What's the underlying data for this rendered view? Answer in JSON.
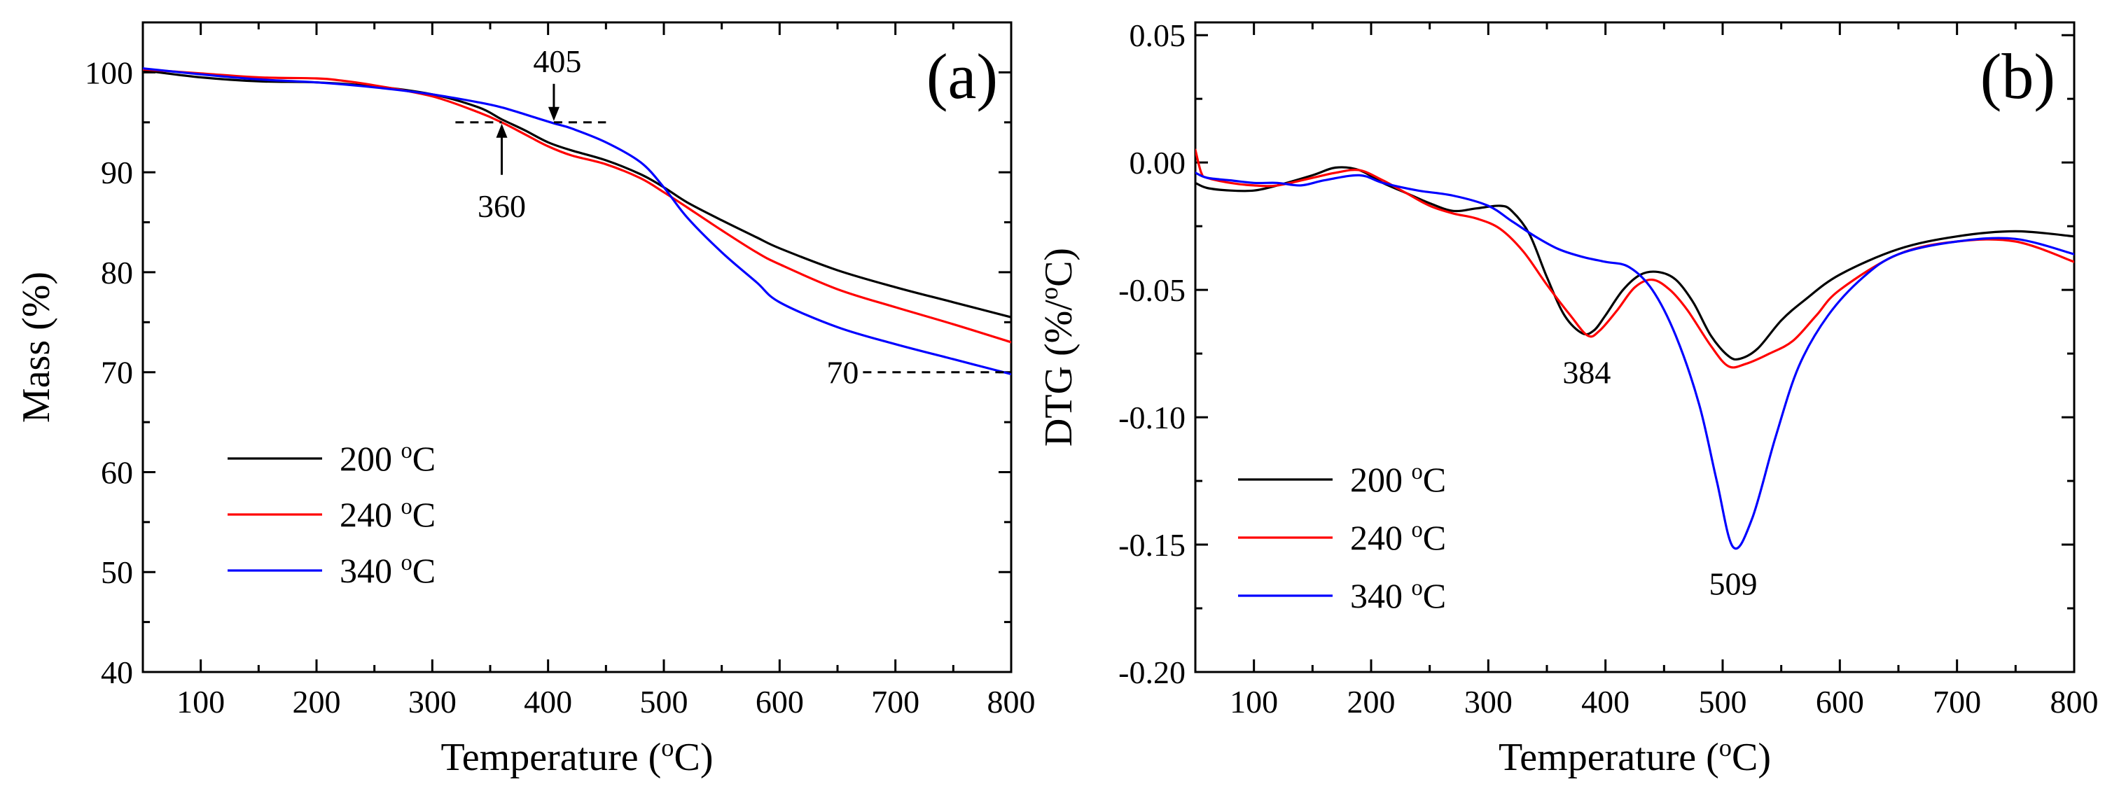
{
  "chart_data": [
    {
      "id": "a",
      "type": "line",
      "panel_label": "(a)",
      "xlabel": "Temperature (oC)",
      "ylabel": "Mass (%)",
      "xlim": [
        50,
        800
      ],
      "ylim": [
        40,
        105
      ],
      "x_ticks": [
        100,
        200,
        300,
        400,
        500,
        600,
        700,
        800
      ],
      "y_ticks": [
        40,
        50,
        60,
        70,
        80,
        90,
        100
      ],
      "legend_position": "bottom-left",
      "series": [
        {
          "name": "200 oC",
          "color": "#000000",
          "x": [
            50,
            100,
            150,
            200,
            250,
            300,
            340,
            360,
            380,
            400,
            420,
            450,
            480,
            500,
            520,
            550,
            580,
            600,
            650,
            700,
            750,
            800
          ],
          "y": [
            100.2,
            99.5,
            99.1,
            99.0,
            98.6,
            97.8,
            96.5,
            95.3,
            94.2,
            93.0,
            92.2,
            91.2,
            89.8,
            88.5,
            87.0,
            85.2,
            83.5,
            82.4,
            80.2,
            78.5,
            77.0,
            75.5
          ]
        },
        {
          "name": "240 oC",
          "color": "#ff0000",
          "x": [
            50,
            100,
            150,
            200,
            220,
            250,
            300,
            340,
            360,
            380,
            400,
            420,
            450,
            480,
            500,
            520,
            550,
            580,
            600,
            650,
            700,
            750,
            800
          ],
          "y": [
            100.3,
            99.9,
            99.5,
            99.4,
            99.2,
            98.7,
            97.6,
            96.0,
            95.0,
            93.8,
            92.6,
            91.7,
            90.8,
            89.4,
            88.0,
            86.5,
            84.2,
            82.0,
            80.8,
            78.3,
            76.5,
            74.8,
            73.0
          ]
        },
        {
          "name": "340 oC",
          "color": "#0000ff",
          "x": [
            50,
            100,
            150,
            200,
            250,
            300,
            340,
            360,
            380,
            405,
            420,
            450,
            480,
            500,
            520,
            550,
            580,
            600,
            650,
            700,
            750,
            800
          ],
          "y": [
            100.4,
            99.8,
            99.3,
            99.0,
            98.5,
            97.8,
            97.0,
            96.5,
            95.8,
            94.9,
            94.4,
            93.0,
            91.0,
            88.5,
            85.5,
            82.0,
            79.0,
            77.0,
            74.5,
            72.8,
            71.3,
            69.8
          ]
        }
      ],
      "annotations": [
        {
          "label": "405",
          "x": 405,
          "y": 95
        },
        {
          "label": "360",
          "x": 360,
          "y": 95
        },
        {
          "label": "70",
          "x": 800,
          "y": 70
        }
      ]
    },
    {
      "id": "b",
      "type": "line",
      "panel_label": "(b)",
      "xlabel": "Temperature (oC)",
      "ylabel": "DTG (%/oC)",
      "xlim": [
        50,
        800
      ],
      "ylim": [
        -0.2,
        0.055
      ],
      "x_ticks": [
        100,
        200,
        300,
        400,
        500,
        600,
        700,
        800
      ],
      "y_ticks": [
        -0.2,
        -0.15,
        -0.1,
        -0.05,
        0.0,
        0.05
      ],
      "y_tick_labels": [
        "-0.20",
        "-0.15",
        "-0.10",
        "-0.05",
        "0.00",
        "0.05"
      ],
      "legend_position": "bottom-left",
      "series": [
        {
          "name": "200 oC",
          "color": "#000000",
          "x": [
            50,
            60,
            80,
            100,
            120,
            150,
            170,
            190,
            210,
            230,
            250,
            270,
            290,
            310,
            320,
            335,
            350,
            365,
            380,
            390,
            400,
            415,
            430,
            445,
            460,
            475,
            490,
            505,
            515,
            530,
            550,
            570,
            600,
            650,
            700,
            750,
            800
          ],
          "y": [
            -0.008,
            -0.01,
            -0.011,
            -0.011,
            -0.009,
            -0.005,
            -0.002,
            -0.003,
            -0.008,
            -0.012,
            -0.016,
            -0.019,
            -0.018,
            -0.017,
            -0.019,
            -0.028,
            -0.045,
            -0.06,
            -0.067,
            -0.066,
            -0.06,
            -0.05,
            -0.044,
            -0.043,
            -0.046,
            -0.055,
            -0.068,
            -0.076,
            -0.077,
            -0.073,
            -0.062,
            -0.054,
            -0.044,
            -0.034,
            -0.029,
            -0.027,
            -0.029
          ]
        },
        {
          "name": "240 oC",
          "color": "#ff0000",
          "x": [
            50,
            55,
            60,
            80,
            100,
            120,
            150,
            170,
            190,
            210,
            230,
            250,
            270,
            290,
            310,
            330,
            350,
            370,
            385,
            395,
            410,
            425,
            440,
            455,
            470,
            490,
            505,
            520,
            540,
            560,
            580,
            600,
            650,
            700,
            750,
            800
          ],
          "y": [
            0.005,
            -0.004,
            -0.006,
            -0.008,
            -0.009,
            -0.009,
            -0.006,
            -0.004,
            -0.003,
            -0.007,
            -0.012,
            -0.017,
            -0.02,
            -0.022,
            -0.026,
            -0.035,
            -0.048,
            -0.06,
            -0.068,
            -0.066,
            -0.058,
            -0.049,
            -0.046,
            -0.05,
            -0.058,
            -0.072,
            -0.08,
            -0.079,
            -0.075,
            -0.07,
            -0.06,
            -0.05,
            -0.036,
            -0.031,
            -0.031,
            -0.039
          ]
        },
        {
          "name": "340 oC",
          "color": "#0000ff",
          "x": [
            50,
            60,
            80,
            100,
            120,
            140,
            160,
            190,
            210,
            240,
            270,
            300,
            320,
            340,
            360,
            380,
            400,
            420,
            440,
            460,
            480,
            495,
            509,
            525,
            545,
            565,
            590,
            620,
            650,
            700,
            750,
            800
          ],
          "y": [
            -0.004,
            -0.006,
            -0.007,
            -0.008,
            -0.008,
            -0.009,
            -0.007,
            -0.005,
            -0.008,
            -0.011,
            -0.013,
            -0.017,
            -0.023,
            -0.029,
            -0.034,
            -0.037,
            -0.039,
            -0.041,
            -0.05,
            -0.068,
            -0.095,
            -0.125,
            -0.151,
            -0.14,
            -0.108,
            -0.08,
            -0.06,
            -0.045,
            -0.036,
            -0.031,
            -0.03,
            -0.036
          ]
        }
      ],
      "annotations": [
        {
          "label": "384",
          "x": 384,
          "y": -0.068
        },
        {
          "label": "509",
          "x": 509,
          "y": -0.151
        }
      ]
    }
  ]
}
